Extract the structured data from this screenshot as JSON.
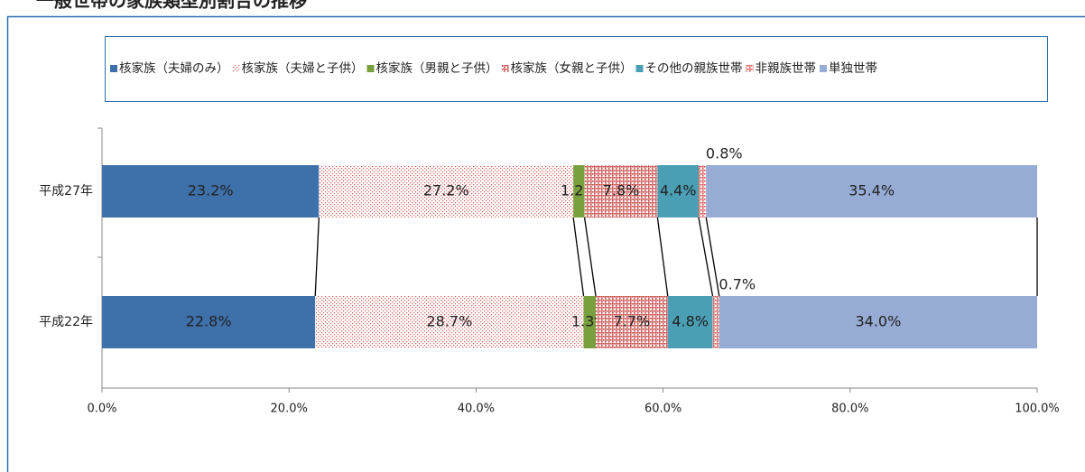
{
  "chart_data": {
    "type": "stacked_barh",
    "title": "一般世帯の家族類型別割合の推移",
    "categories": [
      "平成27年",
      "平成22年"
    ],
    "series": [
      {
        "name": "核家族（夫婦のみ）",
        "color": "#3e70a9",
        "fill": "solid",
        "values": [
          23.2,
          22.8
        ],
        "value_labels": [
          "23.2%",
          "22.8%"
        ]
      },
      {
        "name": "核家族（夫婦と子供）",
        "color": "#d9534f",
        "fill": "light-dots",
        "values": [
          27.2,
          28.7
        ],
        "value_labels": [
          "27.2%",
          "28.7%"
        ]
      },
      {
        "name": "核家族（男親と子供）",
        "color": "#79a03e",
        "fill": "solid",
        "values": [
          1.2,
          1.3
        ],
        "value_labels": [
          "1.2%",
          "1.3%"
        ]
      },
      {
        "name": "核家族（女親と子供）",
        "color": "#c6403c",
        "fill": "dense-dots",
        "values": [
          7.8,
          7.7
        ],
        "value_labels": [
          "7.8%",
          "7.7%"
        ]
      },
      {
        "name": "その他の親族世帯",
        "color": "#4a9fb4",
        "fill": "solid",
        "values": [
          4.4,
          4.8
        ],
        "value_labels": [
          "4.4%",
          "4.8%"
        ]
      },
      {
        "name": "非親族世帯",
        "color": "#d9534f",
        "fill": "dense-dots",
        "values": [
          0.8,
          0.7
        ],
        "value_labels": [
          "0.8%",
          "0.7%"
        ]
      },
      {
        "name": "単独世帯",
        "color": "#97acd4",
        "fill": "solid",
        "values": [
          35.4,
          34.0
        ],
        "value_labels": [
          "35.4%",
          "34.0%"
        ]
      }
    ],
    "xlim": [
      0,
      100
    ],
    "xticks": [
      {
        "value": 0,
        "label": "0.0%"
      },
      {
        "value": 20,
        "label": "20.0%"
      },
      {
        "value": 40,
        "label": "40.0%"
      },
      {
        "value": 60,
        "label": "60.0%"
      },
      {
        "value": 80,
        "label": "80.0%"
      },
      {
        "value": 100,
        "label": "100.0%"
      }
    ],
    "legend": "top",
    "connectors": true
  }
}
